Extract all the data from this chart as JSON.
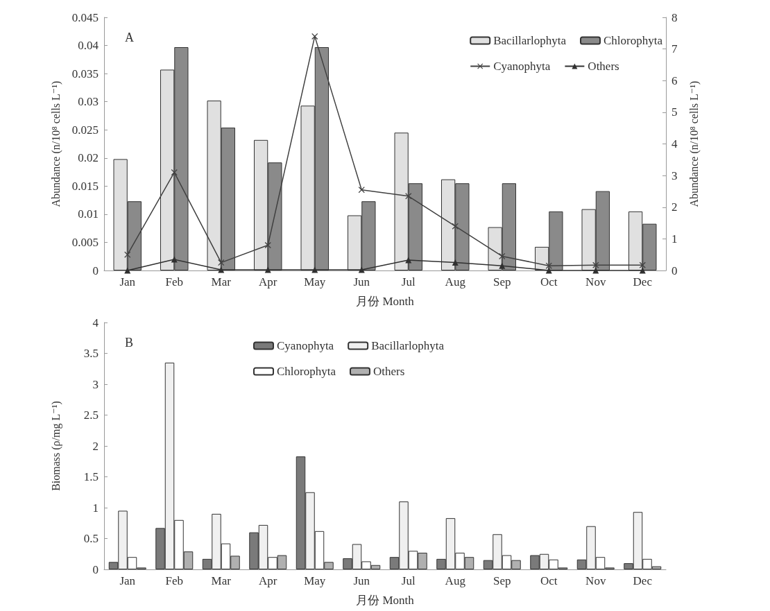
{
  "chart_data": [
    {
      "type": "bar",
      "annotations": [
        "A"
      ],
      "xlabel": "月份 Month",
      "ylabel": "Abundance (n/10⁸ cells L⁻¹)",
      "y2label": "Abundance (n/10⁸ cells L⁻¹)",
      "categories": [
        "Jan",
        "Feb",
        "Mar",
        "Apr",
        "May",
        "Jun",
        "Jul",
        "Aug",
        "Sep",
        "Oct",
        "Nov",
        "Dec"
      ],
      "series": [
        {
          "name": "Bacillarlophyta",
          "color": "#e0e0e0",
          "values": [
            0.0198,
            0.0357,
            0.0302,
            0.0232,
            0.0293,
            0.0098,
            0.0245,
            0.0162,
            0.0077,
            0.0042,
            0.0109,
            0.0105
          ]
        },
        {
          "name": "Chlorophyta",
          "color": "#8a8a8a",
          "values": [
            0.0123,
            0.0397,
            0.0254,
            0.0192,
            0.0397,
            0.0123,
            0.0155,
            0.0155,
            0.0155,
            0.0105,
            0.0141,
            0.0083
          ]
        },
        {
          "name": "Cyanophyta",
          "type": "line",
          "axis": "y2",
          "marker": "cross",
          "color": "#404040",
          "values": [
            0.5,
            3.1,
            0.25,
            0.8,
            7.4,
            2.55,
            2.35,
            1.4,
            0.45,
            0.15,
            0.17,
            0.17
          ]
        },
        {
          "name": "Others",
          "type": "line",
          "axis": "y2",
          "marker": "triangle",
          "color": "#303030",
          "values": [
            0,
            0.35,
            0.02,
            0.02,
            0.02,
            0.02,
            0.33,
            0.25,
            0.15,
            0,
            0,
            0
          ]
        }
      ],
      "ylim": [
        0,
        0.045
      ],
      "yticks": [
        0,
        0.005,
        0.01,
        0.015,
        0.02,
        0.025,
        0.03,
        0.035,
        0.04,
        0.045
      ],
      "y2lim": [
        0,
        8
      ],
      "y2ticks": [
        0,
        1,
        2,
        3,
        4,
        5,
        6,
        7,
        8
      ],
      "legend": "top right"
    },
    {
      "type": "bar",
      "annotations": [
        "B"
      ],
      "xlabel": "月份 Month",
      "ylabel": "Biomass (ρ/mg L⁻¹)",
      "categories": [
        "Jan",
        "Feb",
        "Mar",
        "Apr",
        "May",
        "Jun",
        "Jul",
        "Aug",
        "Sep",
        "Oct",
        "Nov",
        "Dec"
      ],
      "series": [
        {
          "name": "Cyanophyta",
          "color": "#7a7a7a",
          "values": [
            0.12,
            0.67,
            0.17,
            0.6,
            1.83,
            0.18,
            0.2,
            0.17,
            0.15,
            0.23,
            0.16,
            0.1
          ]
        },
        {
          "name": "Bacillarlophyta",
          "color": "#f0f0f0",
          "values": [
            0.95,
            3.35,
            0.9,
            0.72,
            1.25,
            0.41,
            1.1,
            0.83,
            0.57,
            0.25,
            0.7,
            0.93
          ]
        },
        {
          "name": "Chlorophyta",
          "color": "#ffffff",
          "values": [
            0.2,
            0.8,
            0.42,
            0.2,
            0.62,
            0.13,
            0.3,
            0.27,
            0.23,
            0.16,
            0.2,
            0.17
          ]
        },
        {
          "name": "Others",
          "color": "#b0b0b0",
          "values": [
            0.03,
            0.29,
            0.22,
            0.23,
            0.12,
            0.07,
            0.27,
            0.2,
            0.15,
            0.03,
            0.03,
            0.05
          ]
        }
      ],
      "ylim": [
        0,
        4
      ],
      "yticks": [
        0,
        0.5,
        1,
        1.5,
        2,
        2.5,
        3,
        3.5,
        4
      ],
      "legend": "top"
    }
  ]
}
